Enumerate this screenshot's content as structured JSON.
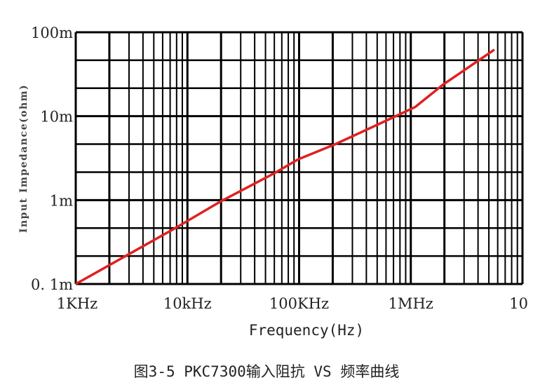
{
  "chart_data": {
    "type": "line",
    "xscale": "log",
    "yscale": "log",
    "xlabel": "Frequency(Hz)",
    "ylabel": "Input Impedance(ohm)",
    "xlim": [
      1000,
      10000000
    ],
    "ylim": [
      0.1,
      100
    ],
    "y_unit": "m",
    "x_ticks": [
      {
        "value": 1000,
        "label": "1KHz"
      },
      {
        "value": 10000,
        "label": "10kHz"
      },
      {
        "value": 100000,
        "label": "100KHz"
      },
      {
        "value": 1000000,
        "label": "1MHz"
      },
      {
        "value": 10000000,
        "label": "10"
      }
    ],
    "y_ticks": [
      {
        "value": 100,
        "label": "100m"
      },
      {
        "value": 10,
        "label": "10m"
      },
      {
        "value": 1,
        "label": "1m"
      },
      {
        "value": 0.1,
        "label": "0. 1m"
      }
    ],
    "grid": true,
    "line_color": "#e02020",
    "series": [
      {
        "x": [
          1000,
          7700,
          20000,
          60000,
          98000,
          208000,
          665000,
          1100000,
          1940000,
          5600000
        ],
        "y": [
          0.1,
          0.46,
          0.97,
          2.09,
          3.06,
          4.6,
          9.4,
          12.9,
          23.7,
          62
        ]
      }
    ]
  },
  "caption": "图3-5 PKC7300输入阻抗 VS 频率曲线"
}
